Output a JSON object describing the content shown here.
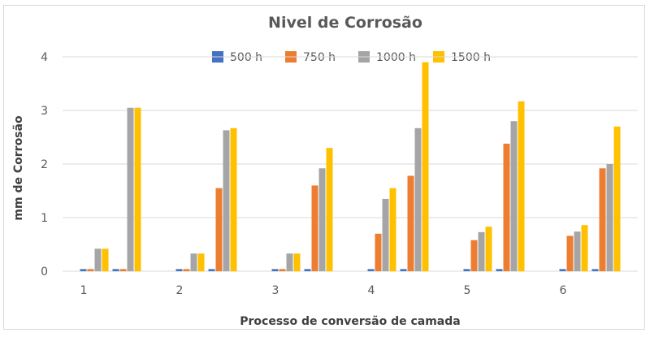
{
  "chart_data": {
    "type": "bar",
    "title": "Nivel de Corrosão",
    "xlabel": "Processo de conversão de camada",
    "ylabel": "mm de Corrosão",
    "ylim": [
      0,
      4
    ],
    "yticks": [
      "0",
      "1",
      "2",
      "3",
      "4"
    ],
    "grid": true,
    "legend_position": "top",
    "groups": [
      "1",
      "2",
      "3",
      "4",
      "5",
      "6"
    ],
    "subgroups_per_group": 2,
    "series": [
      {
        "name": "500 h",
        "color": "#4472C4",
        "values": [
          0.04,
          0.04,
          0.04,
          0.04,
          0.04,
          0.04,
          0.04,
          0.04,
          0.04,
          0.04,
          0.04,
          0.04
        ]
      },
      {
        "name": "750 h",
        "color": "#ED7D31",
        "values": [
          0.04,
          0.04,
          0.04,
          1.55,
          0.04,
          1.6,
          0.7,
          1.78,
          0.58,
          2.38,
          0.66,
          1.92
        ]
      },
      {
        "name": "1000 h",
        "color": "#A5A5A5",
        "values": [
          0.42,
          3.05,
          0.33,
          2.63,
          0.33,
          1.92,
          1.35,
          2.67,
          0.73,
          2.8,
          0.74,
          2.0
        ]
      },
      {
        "name": "1500 h",
        "color": "#FFC000",
        "values": [
          0.42,
          3.05,
          0.33,
          2.67,
          0.33,
          2.3,
          1.55,
          3.9,
          0.83,
          3.17,
          0.86,
          2.7
        ]
      }
    ]
  }
}
